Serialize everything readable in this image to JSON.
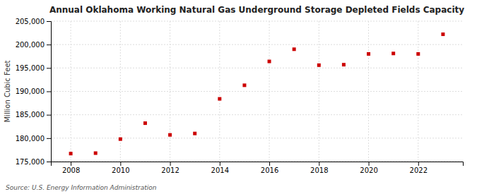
{
  "chart_data": {
    "type": "scatter",
    "title": "Annual Oklahoma Working Natural Gas Underground Storage Depleted Fields Capacity",
    "ylabel": "Million Cubic Feet",
    "annotations": [
      "Source: U.S. Energy Information Administration"
    ],
    "x": [
      2008,
      2009,
      2010,
      2011,
      2012,
      2013,
      2014,
      2015,
      2016,
      2017,
      2018,
      2019,
      2020,
      2021,
      2022,
      2023
    ],
    "values": [
      176700,
      176800,
      179800,
      183200,
      180700,
      181000,
      188400,
      191300,
      196400,
      199000,
      195600,
      195700,
      198000,
      198100,
      198000,
      202200
    ],
    "color": "#cc0000",
    "marker": "square",
    "xlim": [
      2007.2,
      2023.8
    ],
    "xticks": [
      2008,
      2010,
      2012,
      2014,
      2016,
      2018,
      2020,
      2022
    ],
    "ylim": [
      175000,
      205000
    ],
    "yticks": [
      {
        "value": 175000,
        "label": "175,000"
      },
      {
        "value": 180000,
        "label": "180,000"
      },
      {
        "value": 185000,
        "label": "185,000"
      },
      {
        "value": 190000,
        "label": "190,000"
      },
      {
        "value": 195000,
        "label": "195,000"
      },
      {
        "value": 200000,
        "label": "200,000"
      },
      {
        "value": 205000,
        "label": "205,000"
      }
    ],
    "grid": true
  }
}
